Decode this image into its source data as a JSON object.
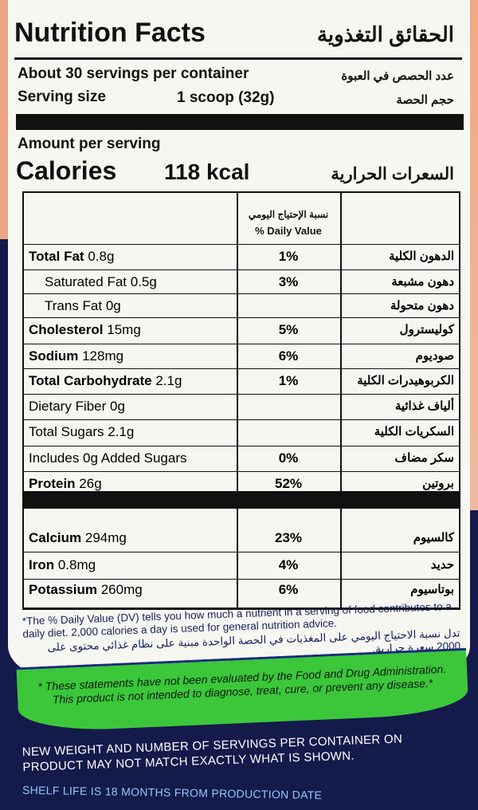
{
  "header": {
    "title": "Nutrition Facts",
    "title_ar": "الحقائق التغذوية",
    "servings": "About 30 servings per container",
    "servings_ar": "عدد الحصص في العبوة",
    "serving_size_label": "Serving size",
    "serving_size": "1 scoop (32g)",
    "serving_size_ar": "حجم الحصة",
    "amount": "Amount per serving",
    "calories_label": "Calories",
    "calories": "118 kcal",
    "calories_ar": "السعرات الحرارية"
  },
  "table": {
    "dv_header_ar": "نسبة الإحتياج اليومي",
    "dv_header": "% Daily Value",
    "rows": [
      {
        "name": "Total Fat",
        "amount": "0.8g",
        "dv": "1%",
        "ar": "الدهون الكلية",
        "bold": true
      },
      {
        "name": "Saturated Fat",
        "amount": "0.5g",
        "dv": "3%",
        "ar": "دهون مشبعة",
        "bold": false
      },
      {
        "name": "Trans Fat",
        "amount": "0g",
        "dv": "",
        "ar": "دهون متحولة",
        "bold": false
      },
      {
        "name": "Cholesterol",
        "amount": "15mg",
        "dv": "5%",
        "ar": "كوليسترول",
        "bold": true
      },
      {
        "name": "Sodium",
        "amount": "128mg",
        "dv": "6%",
        "ar": "صوديوم",
        "bold": true
      },
      {
        "name": "Total Carbohydrate",
        "amount": "2.1g",
        "dv": "1%",
        "ar": "الكربوهيدرات الكلية",
        "bold": true
      },
      {
        "name": "Dietary Fiber",
        "amount": "0g",
        "dv": "",
        "ar": "ألياف غذائية",
        "bold": false
      },
      {
        "name": "Total Sugars",
        "amount": "2.1g",
        "dv": "",
        "ar": "السكريات الكلية",
        "bold": false
      },
      {
        "name": "Includes 0g Added Sugars",
        "amount": "",
        "dv": "0%",
        "ar": "سكر مضاف",
        "bold": false
      },
      {
        "name": "Protein",
        "amount": "26g",
        "dv": "52%",
        "ar": "بروتين",
        "bold": true
      }
    ],
    "minerals": [
      {
        "name": "Calcium",
        "amount": "294mg",
        "dv": "23%",
        "ar": "كالسيوم"
      },
      {
        "name": "Iron",
        "amount": "0.8mg",
        "dv": "4%",
        "ar": "حديد"
      },
      {
        "name": "Potassium",
        "amount": "260mg",
        "dv": "6%",
        "ar": "بوتاسيوم"
      }
    ]
  },
  "footnote": {
    "en": "*The % Daily Value (DV) tells you how much a nutrient in a serving of food contributes to a daily diet. 2,000 calories a day is used for general nutrition advice.",
    "ar": "تدل نسبة الاحتياج اليومي على المغذيات في الحصة الواحدة مبنية على نظام غذائي محتوى على 2000 سعرة حرارية."
  },
  "disclaimer": "* These statements have not been evaluated by the Food and Drug Administration. This product is not intended to diagnose, treat, cure, or prevent any disease.*",
  "notice": "NEW WEIGHT AND NUMBER OF SERVINGS PER CONTAINER ON PRODUCT MAY NOT MATCH EXACTLY WHAT IS SHOWN.",
  "shelf_life": "SHELF LIFE IS 18 MONTHS FROM PRODUCTION DATE",
  "colors": {
    "navy": "#141a4a",
    "green": "#3cc63a",
    "label": "#f7f7f2",
    "peach": "#f3a882"
  }
}
